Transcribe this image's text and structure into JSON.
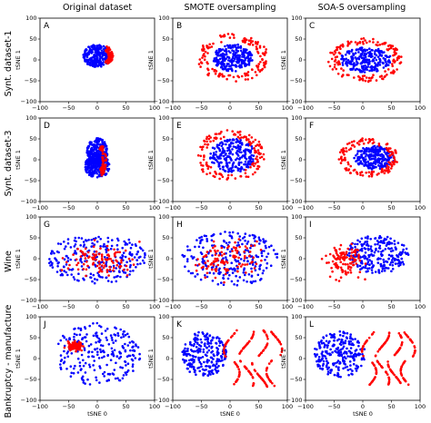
{
  "column_titles": [
    "Original dataset",
    "SMOTE oversampling",
    "SOA-S oversampling"
  ],
  "row_titles": [
    "Synt. dataset-1",
    "Synt. dataset-3",
    "Wine",
    "Bankruptcy - manufacture"
  ],
  "colors": {
    "majority": "#0000ff",
    "minority": "#ff0000"
  },
  "chart_data": {
    "type": "scatter",
    "xlabel": "tSNE 0",
    "ylabel": "tSNE 1",
    "xlim": [
      -100,
      100
    ],
    "ylim": [
      -100,
      100
    ],
    "xticks": [
      "−100",
      "−50",
      "0",
      "50",
      "100"
    ],
    "yticks": [
      "−100",
      "−50",
      "0",
      "50",
      "100"
    ],
    "grid": false,
    "panels": [
      {
        "label": "A",
        "row": 0,
        "col": 0,
        "blue": [
          {
            "cx": 0,
            "cy": 10,
            "rx": 25,
            "ry": 27,
            "kind": "blob"
          }
        ],
        "red": [
          {
            "cx": 10,
            "cy": 10,
            "rx": 16,
            "ry": 22,
            "kind": "edge"
          }
        ]
      },
      {
        "label": "B",
        "row": 0,
        "col": 1,
        "blue": [
          {
            "cx": 5,
            "cy": 5,
            "rx": 35,
            "ry": 33,
            "kind": "blob"
          }
        ],
        "red": [
          {
            "cx": 5,
            "cy": 5,
            "rx": 60,
            "ry": 55,
            "kind": "ring"
          }
        ]
      },
      {
        "label": "C",
        "row": 0,
        "col": 2,
        "blue": [
          {
            "cx": 5,
            "cy": 0,
            "rx": 45,
            "ry": 30,
            "kind": "blob"
          }
        ],
        "red": [
          {
            "cx": 5,
            "cy": 0,
            "rx": 62,
            "ry": 50,
            "kind": "ring"
          }
        ]
      },
      {
        "label": "D",
        "row": 1,
        "col": 0,
        "blue": [
          {
            "cx": 0,
            "cy": 20,
            "rx": 18,
            "ry": 32,
            "kind": "blob"
          },
          {
            "cx": 0,
            "cy": -15,
            "rx": 22,
            "ry": 28,
            "kind": "blob"
          }
        ],
        "red": [
          {
            "cx": 0,
            "cy": 0,
            "rx": 15,
            "ry": 40,
            "kind": "edge"
          }
        ]
      },
      {
        "label": "E",
        "row": 1,
        "col": 1,
        "blue": [
          {
            "cx": 5,
            "cy": 10,
            "rx": 40,
            "ry": 40,
            "kind": "blob"
          }
        ],
        "red": [
          {
            "cx": 0,
            "cy": 10,
            "rx": 58,
            "ry": 58,
            "kind": "ring"
          }
        ]
      },
      {
        "label": "F",
        "row": 1,
        "col": 2,
        "blue": [
          {
            "cx": 20,
            "cy": 5,
            "rx": 35,
            "ry": 28,
            "kind": "blob"
          }
        ],
        "red": [
          {
            "cx": 10,
            "cy": 5,
            "rx": 50,
            "ry": 45,
            "kind": "ring"
          }
        ]
      },
      {
        "label": "G",
        "row": 2,
        "col": 0,
        "blue": [
          {
            "cx": 0,
            "cy": 0,
            "rx": 85,
            "ry": 60,
            "kind": "blob"
          }
        ],
        "red": [
          {
            "cx": 0,
            "cy": 0,
            "rx": 80,
            "ry": 55,
            "kind": "scatter"
          }
        ]
      },
      {
        "label": "H",
        "row": 2,
        "col": 1,
        "blue": [
          {
            "cx": 0,
            "cy": 0,
            "rx": 85,
            "ry": 65,
            "kind": "blob"
          }
        ],
        "red": [
          {
            "cx": 0,
            "cy": 0,
            "rx": 85,
            "ry": 65,
            "kind": "scatter"
          }
        ]
      },
      {
        "label": "I",
        "row": 2,
        "col": 2,
        "blue": [
          {
            "cx": 25,
            "cy": 10,
            "rx": 55,
            "ry": 45,
            "kind": "blob"
          }
        ],
        "red": [
          {
            "cx": -30,
            "cy": -10,
            "rx": 50,
            "ry": 55,
            "kind": "scatter"
          }
        ]
      },
      {
        "label": "J",
        "row": 3,
        "col": 0,
        "blue": [
          {
            "cx": 0,
            "cy": 10,
            "rx": 75,
            "ry": 75,
            "kind": "blob"
          }
        ],
        "red": [
          {
            "cx": -40,
            "cy": 30,
            "rx": 20,
            "ry": 15,
            "kind": "scatter"
          }
        ]
      },
      {
        "label": "K",
        "row": 3,
        "col": 1,
        "blue": [
          {
            "cx": -45,
            "cy": 10,
            "rx": 40,
            "ry": 55,
            "kind": "blob"
          }
        ],
        "red": [
          {
            "cx": 40,
            "cy": 0,
            "rx": 55,
            "ry": 80,
            "kind": "curves"
          }
        ]
      },
      {
        "label": "L",
        "row": 3,
        "col": 2,
        "blue": [
          {
            "cx": -40,
            "cy": 10,
            "rx": 45,
            "ry": 55,
            "kind": "blob"
          }
        ],
        "red": [
          {
            "cx": 45,
            "cy": 0,
            "rx": 50,
            "ry": 75,
            "kind": "curves"
          }
        ]
      }
    ]
  }
}
